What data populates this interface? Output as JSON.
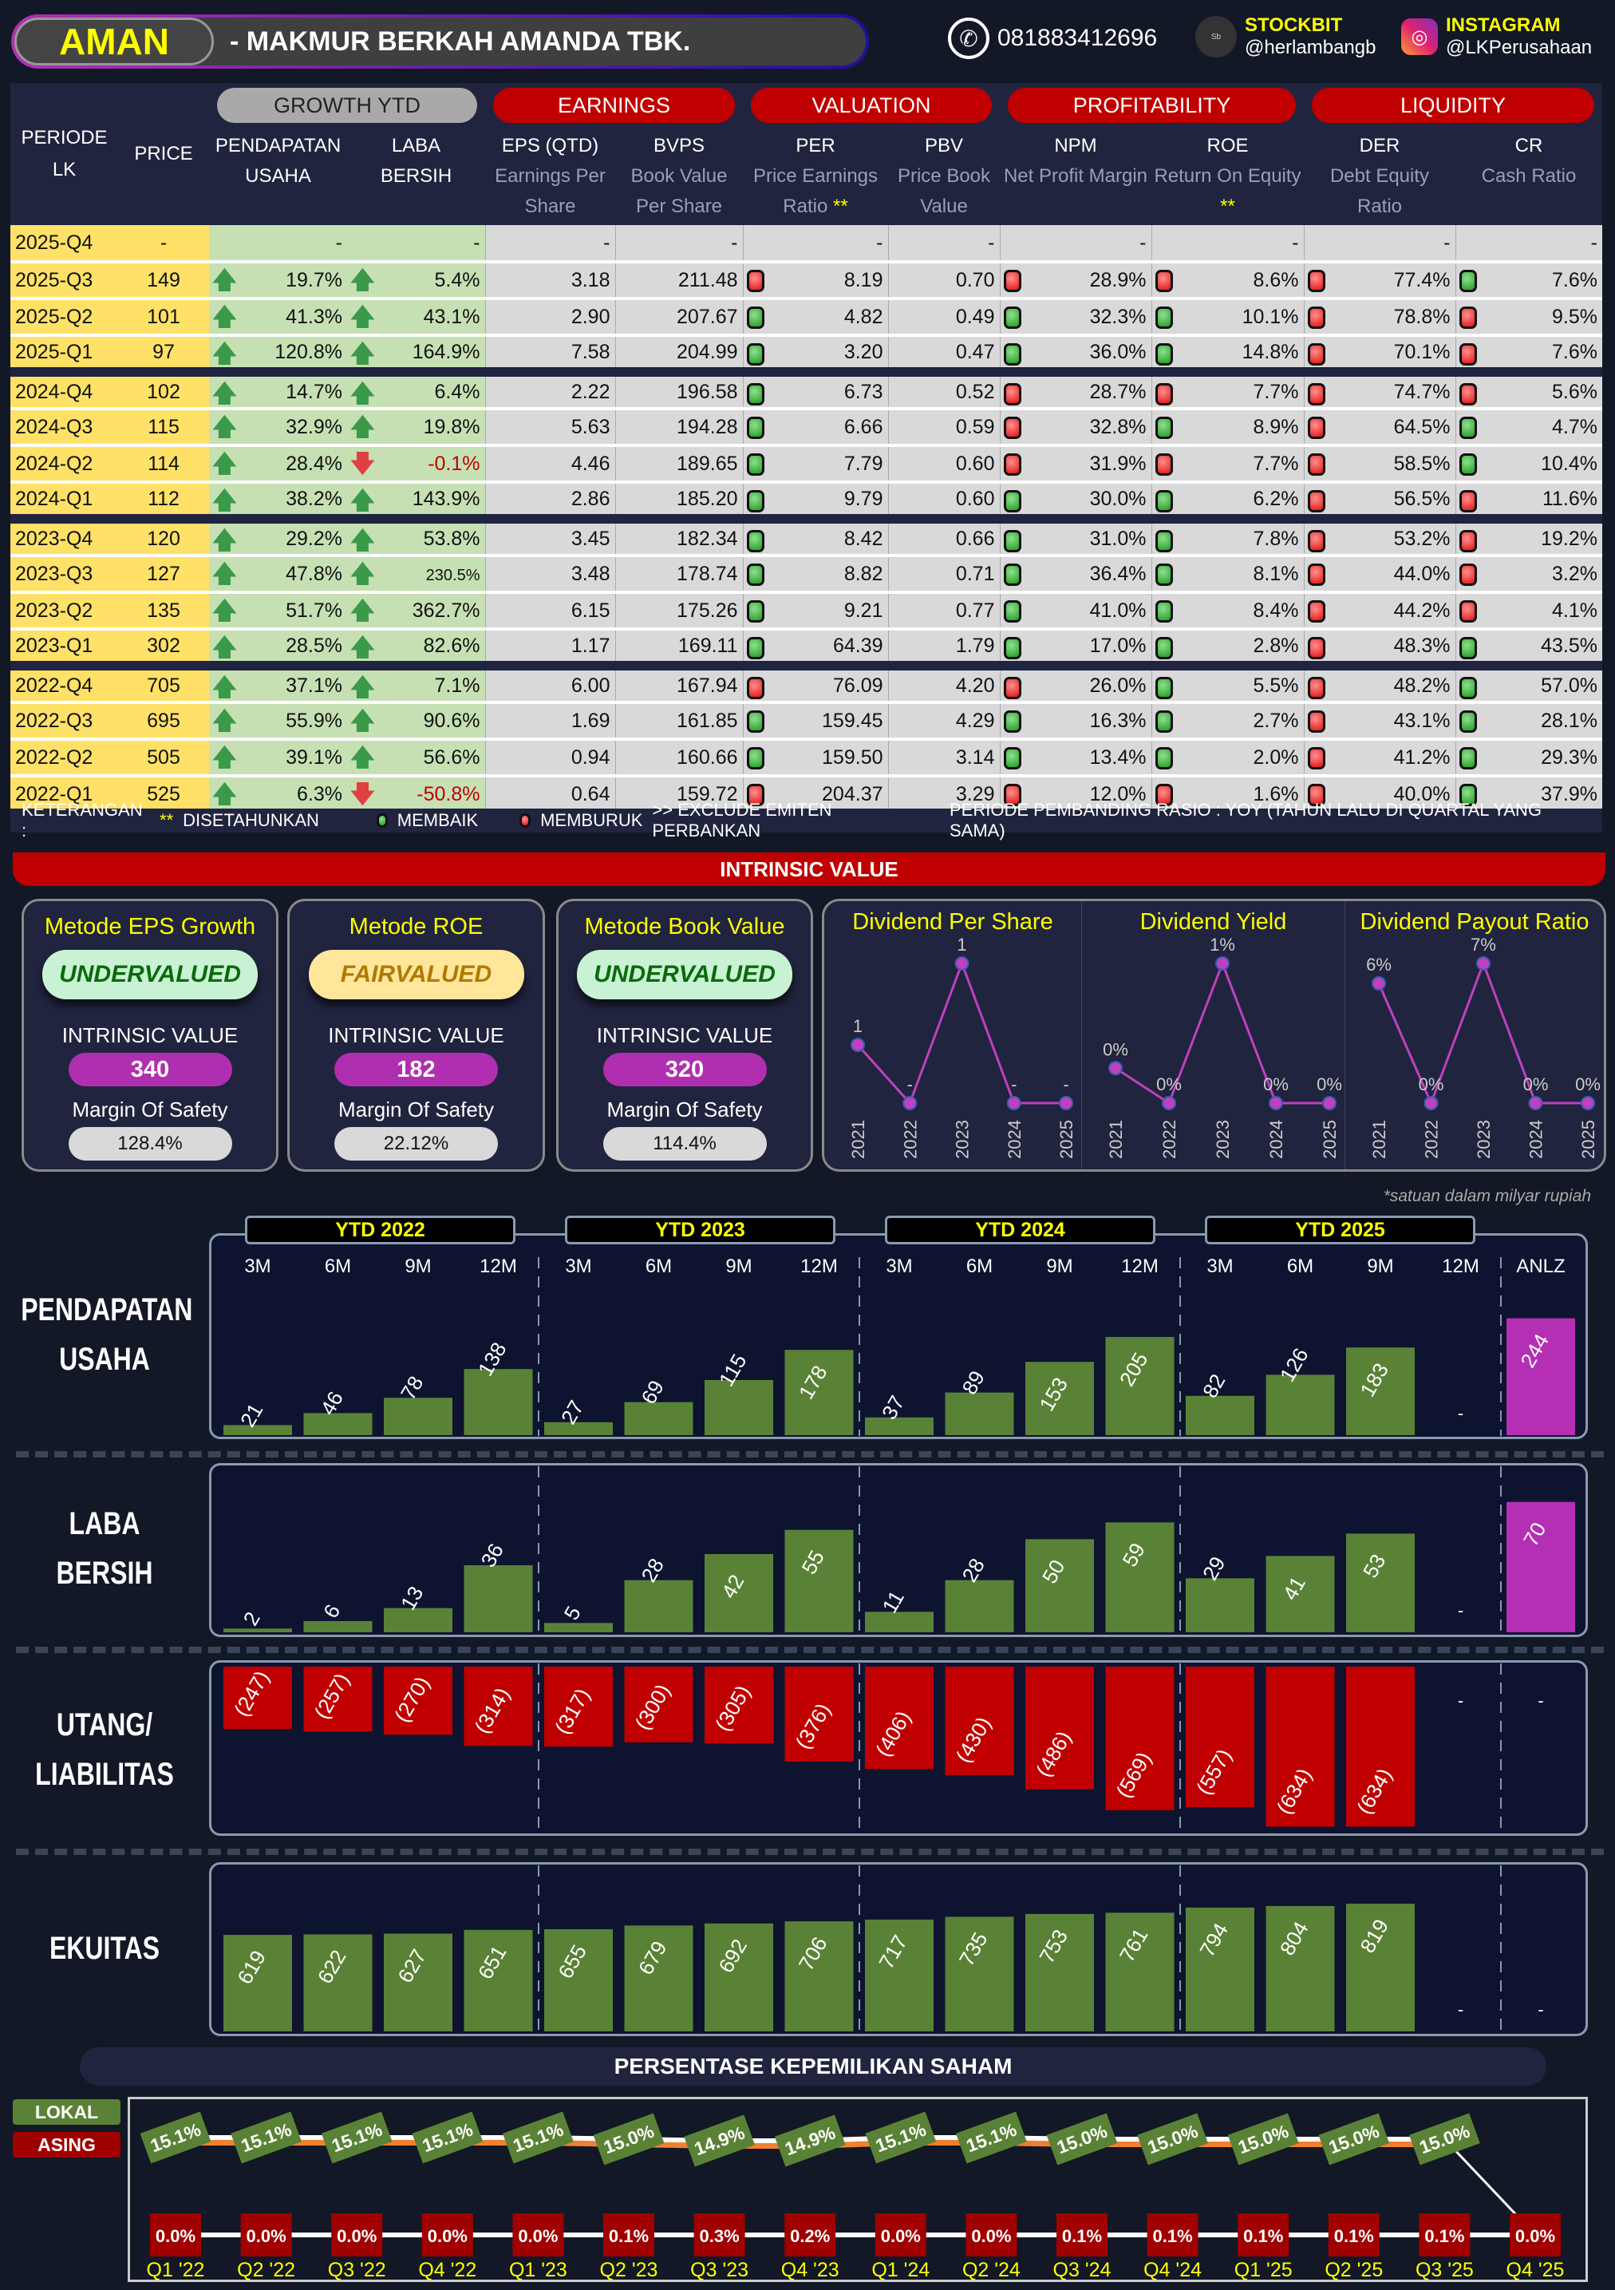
{
  "header": {
    "ticker": "AMAN",
    "company": "- MAKMUR BERKAH AMANDA TBK.",
    "phone": "081883412696",
    "stockbit_label": "STOCKBIT",
    "stockbit_handle": "@herlambangb",
    "instagram_label": "INSTAGRAM",
    "instagram_handle": "@LKPerusahaan",
    "stockbit_logo_text": "Stockbit"
  },
  "table": {
    "groups": {
      "growth": "GROWTH YTD",
      "earnings": "EARNINGS",
      "valuation": "VALUATION",
      "profitability": "PROFITABILITY",
      "liquidity": "LIQUIDITY"
    },
    "headers": {
      "periode": "PERIODE",
      "lk": "LK",
      "price": "PRICE",
      "rev1": "PENDAPATAN",
      "rev2": "USAHA",
      "lb1": "LABA",
      "lb2": "BERSIH",
      "eps": "EPS (QTD)",
      "eps_sub": "Earnings Per Share",
      "bvps": "BVPS",
      "bvps_sub": "Book Value Per Share",
      "per": "PER",
      "per_sub": "Price Earnings Ratio",
      "per_mark": "**",
      "pbv": "PBV",
      "pbv_sub": "Price Book Value",
      "npm": "NPM",
      "npm_sub": "Net Profit Margin",
      "roe": "ROE",
      "roe_sub": "Return On Equity",
      "roe_mark": "**",
      "der": "DER",
      "der_sub": "Debt Equity Ratio",
      "cr": "CR",
      "cr_sub": "Cash Ratio"
    },
    "rows": [
      {
        "p": "2025-Q4",
        "price": "-",
        "rev": "-",
        "lb": "-",
        "eps": "-",
        "bvps": "-",
        "per": "-",
        "pbv": "-",
        "npm": "-",
        "roe": "-",
        "der": "-",
        "cr": "-"
      },
      {
        "p": "2025-Q3",
        "price": "149",
        "rev": "19.7%",
        "rd": "up",
        "lb": "5.4%",
        "ld": "up",
        "eps": "3.18",
        "bvps": "211.48",
        "per": "8.19",
        "pi": "r",
        "pbv": "0.70",
        "npm": "28.9%",
        "ni": "r",
        "roe": "8.6%",
        "ri": "r",
        "der": "77.4%",
        "di": "r",
        "cr": "7.6%",
        "ci": "g"
      },
      {
        "p": "2025-Q2",
        "price": "101",
        "rev": "41.3%",
        "rd": "up",
        "lb": "43.1%",
        "ld": "up",
        "eps": "2.90",
        "bvps": "207.67",
        "per": "4.82",
        "pi": "g",
        "pbv": "0.49",
        "npm": "32.3%",
        "ni": "g",
        "roe": "10.1%",
        "ri": "g",
        "der": "78.8%",
        "di": "r",
        "cr": "9.5%",
        "ci": "r"
      },
      {
        "p": "2025-Q1",
        "price": "97",
        "rev": "120.8%",
        "rd": "up",
        "lb": "164.9%",
        "ld": "up",
        "eps": "7.58",
        "bvps": "204.99",
        "per": "3.20",
        "pi": "g",
        "pbv": "0.47",
        "npm": "36.0%",
        "ni": "g",
        "roe": "14.8%",
        "ri": "g",
        "der": "70.1%",
        "di": "r",
        "cr": "7.6%",
        "ci": "r"
      },
      {
        "p": "2024-Q4",
        "price": "102",
        "rev": "14.7%",
        "rd": "up",
        "lb": "6.4%",
        "ld": "up",
        "eps": "2.22",
        "bvps": "196.58",
        "per": "6.73",
        "pi": "g",
        "pbv": "0.52",
        "npm": "28.7%",
        "ni": "r",
        "roe": "7.7%",
        "ri": "r",
        "der": "74.7%",
        "di": "r",
        "cr": "5.6%",
        "ci": "r"
      },
      {
        "p": "2024-Q3",
        "price": "115",
        "rev": "32.9%",
        "rd": "up",
        "lb": "19.8%",
        "ld": "up",
        "eps": "5.63",
        "bvps": "194.28",
        "per": "6.66",
        "pi": "g",
        "pbv": "0.59",
        "npm": "32.8%",
        "ni": "r",
        "roe": "8.9%",
        "ri": "g",
        "der": "64.5%",
        "di": "r",
        "cr": "4.7%",
        "ci": "g"
      },
      {
        "p": "2024-Q2",
        "price": "114",
        "rev": "28.4%",
        "rd": "up",
        "lb": "-0.1%",
        "ld": "down",
        "eps": "4.46",
        "bvps": "189.65",
        "per": "7.79",
        "pi": "g",
        "pbv": "0.60",
        "npm": "31.9%",
        "ni": "r",
        "roe": "7.7%",
        "ri": "r",
        "der": "58.5%",
        "di": "r",
        "cr": "10.4%",
        "ci": "g"
      },
      {
        "p": "2024-Q1",
        "price": "112",
        "rev": "38.2%",
        "rd": "up",
        "lb": "143.9%",
        "ld": "up",
        "eps": "2.86",
        "bvps": "185.20",
        "per": "9.79",
        "pi": "g",
        "pbv": "0.60",
        "npm": "30.0%",
        "ni": "g",
        "roe": "6.2%",
        "ri": "g",
        "der": "56.5%",
        "di": "r",
        "cr": "11.6%",
        "ci": "r"
      },
      {
        "p": "2023-Q4",
        "price": "120",
        "rev": "29.2%",
        "rd": "up",
        "lb": "53.8%",
        "ld": "up",
        "eps": "3.45",
        "bvps": "182.34",
        "per": "8.42",
        "pi": "g",
        "pbv": "0.66",
        "npm": "31.0%",
        "ni": "g",
        "roe": "7.8%",
        "ri": "g",
        "der": "53.2%",
        "di": "r",
        "cr": "19.2%",
        "ci": "r"
      },
      {
        "p": "2023-Q3",
        "price": "127",
        "rev": "47.8%",
        "rd": "up",
        "lb": "230.5%",
        "ld": "up",
        "eps": "3.48",
        "bvps": "178.74",
        "per": "8.82",
        "pi": "g",
        "pbv": "0.71",
        "npm": "36.4%",
        "ni": "g",
        "roe": "8.1%",
        "ri": "g",
        "der": "44.0%",
        "di": "r",
        "cr": "3.2%",
        "ci": "r"
      },
      {
        "p": "2023-Q2",
        "price": "135",
        "rev": "51.7%",
        "rd": "up",
        "lb": "362.7%",
        "ld": "up",
        "eps": "6.15",
        "bvps": "175.26",
        "per": "9.21",
        "pi": "g",
        "pbv": "0.77",
        "npm": "41.0%",
        "ni": "g",
        "roe": "8.4%",
        "ri": "g",
        "der": "44.2%",
        "di": "r",
        "cr": "4.1%",
        "ci": "r"
      },
      {
        "p": "2023-Q1",
        "price": "302",
        "rev": "28.5%",
        "rd": "up",
        "lb": "82.6%",
        "ld": "up",
        "eps": "1.17",
        "bvps": "169.11",
        "per": "64.39",
        "pi": "g",
        "pbv": "1.79",
        "npm": "17.0%",
        "ni": "g",
        "roe": "2.8%",
        "ri": "g",
        "der": "48.3%",
        "di": "r",
        "cr": "43.5%",
        "ci": "g"
      },
      {
        "p": "2022-Q4",
        "price": "705",
        "rev": "37.1%",
        "rd": "up",
        "lb": "7.1%",
        "ld": "up",
        "eps": "6.00",
        "bvps": "167.94",
        "per": "76.09",
        "pi": "r",
        "pbv": "4.20",
        "npm": "26.0%",
        "ni": "r",
        "roe": "5.5%",
        "ri": "g",
        "der": "48.2%",
        "di": "r",
        "cr": "57.0%",
        "ci": "g"
      },
      {
        "p": "2022-Q3",
        "price": "695",
        "rev": "55.9%",
        "rd": "up",
        "lb": "90.6%",
        "ld": "up",
        "eps": "1.69",
        "bvps": "161.85",
        "per": "159.45",
        "pi": "g",
        "pbv": "4.29",
        "npm": "16.3%",
        "ni": "g",
        "roe": "2.7%",
        "ri": "g",
        "der": "43.1%",
        "di": "r",
        "cr": "28.1%",
        "ci": "g"
      },
      {
        "p": "2022-Q2",
        "price": "505",
        "rev": "39.1%",
        "rd": "up",
        "lb": "56.6%",
        "ld": "up",
        "eps": "0.94",
        "bvps": "160.66",
        "per": "159.50",
        "pi": "g",
        "pbv": "3.14",
        "npm": "13.4%",
        "ni": "g",
        "roe": "2.0%",
        "ri": "g",
        "der": "41.2%",
        "di": "r",
        "cr": "29.3%",
        "ci": "g"
      },
      {
        "p": "2022-Q1",
        "price": "525",
        "rev": "6.3%",
        "rd": "up",
        "lb": "-50.8%",
        "ld": "down",
        "eps": "0.64",
        "bvps": "159.72",
        "per": "204.37",
        "pi": "r",
        "pbv": "3.29",
        "npm": "12.0%",
        "ni": "r",
        "roe": "1.6%",
        "ri": "r",
        "der": "40.0%",
        "di": "r",
        "cr": "37.9%",
        "ci": "g"
      }
    ]
  },
  "legend": {
    "prefix": "KETERANGAN :",
    "mark": "**",
    "annualized": "DISETAHUNKAN",
    "better": "MEMBAIK",
    "worse": "MEMBURUK",
    "exclude": ">> EXCLUDE EMITEN PERBANKAN",
    "compare": "PERIODE PEMBANDING RASIO : YOY (TAHUN LALU DI QUARTAL YANG SAMA)"
  },
  "intrinsic": {
    "title": "INTRINSIC VALUE",
    "iv_label": "INTRINSIC VALUE",
    "mos_label": "Margin Of Safety",
    "methods": [
      {
        "name": "Metode EPS Growth",
        "status": "UNDERVALUED",
        "value": "340",
        "mos": "128.4%"
      },
      {
        "name": "Metode ROE",
        "status": "FAIRVALUED",
        "value": "182",
        "mos": "22.12%"
      },
      {
        "name": "Metode Book Value",
        "status": "UNDERVALUED",
        "value": "320",
        "mos": "114.4%"
      }
    ]
  },
  "dividend": {
    "years": [
      "2021",
      "2022",
      "2023",
      "2024",
      "2025"
    ],
    "charts": [
      {
        "title": "Dividend Per Share",
        "values": [
          0.5,
          0,
          1.2,
          0,
          0
        ],
        "labels": [
          "1",
          "-",
          "1",
          "-",
          "-"
        ]
      },
      {
        "title": "Dividend Yield",
        "values": [
          0.3,
          0,
          1.2,
          0,
          0
        ],
        "labels": [
          "0%",
          "0%",
          "1%",
          "0%",
          "0%"
        ]
      },
      {
        "title": "Dividend Payout Ratio",
        "values": [
          6,
          0,
          7,
          0,
          0
        ],
        "labels": [
          "6%",
          "0%",
          "7%",
          "0%",
          "0%"
        ]
      }
    ]
  },
  "chart_data": [
    {
      "type": "bar",
      "title": "PENDAPATAN USAHA",
      "title2": "",
      "categories": [
        "3M",
        "6M",
        "9M",
        "12M",
        "3M",
        "6M",
        "9M",
        "12M",
        "3M",
        "6M",
        "9M",
        "12M",
        "3M",
        "6M",
        "9M",
        "12M",
        "ANLZ"
      ],
      "groups": [
        "YTD 2022",
        "YTD 2023",
        "YTD 2024",
        "YTD 2025"
      ],
      "values": [
        21,
        46,
        78,
        138,
        27,
        69,
        115,
        178,
        37,
        89,
        153,
        205,
        82,
        126,
        183,
        null,
        244
      ],
      "ylim": [
        0,
        400
      ],
      "unit_note": "*satuan dalam milyar rupiah"
    },
    {
      "type": "bar",
      "title": "LABA",
      "title2": "BERSIH",
      "values": [
        2,
        6,
        13,
        36,
        5,
        28,
        42,
        55,
        11,
        28,
        50,
        59,
        29,
        41,
        53,
        null,
        70
      ],
      "ylim": [
        0,
        90
      ]
    },
    {
      "type": "bar",
      "title": "UTANG/",
      "title2": "LIABILITAS",
      "values": [
        247,
        257,
        270,
        314,
        317,
        300,
        305,
        376,
        406,
        430,
        486,
        569,
        557,
        634,
        634,
        null,
        null
      ],
      "negative": true,
      "ylim": [
        0,
        680
      ]
    },
    {
      "type": "bar",
      "title": "EKUITAS",
      "title2": "",
      "values": [
        619,
        622,
        627,
        651,
        655,
        679,
        692,
        706,
        717,
        735,
        753,
        761,
        794,
        804,
        819,
        null,
        null
      ],
      "ylim": [
        0,
        1075
      ]
    },
    {
      "type": "line",
      "title": "PERSENTASE KEPEMILIKAN SAHAM",
      "categories": [
        "Q1 '22",
        "Q2 '22",
        "Q3 '22",
        "Q4 '22",
        "Q1 '23",
        "Q2 '23",
        "Q3 '23",
        "Q4 '23",
        "Q1 '24",
        "Q2 '24",
        "Q3 '24",
        "Q4 '24",
        "Q1 '25",
        "Q2 '25",
        "Q3 '25",
        "Q4 '25"
      ],
      "series": [
        {
          "name": "LOKAL",
          "values": [
            15.1,
            15.1,
            15.1,
            15.1,
            15.1,
            15.0,
            14.9,
            14.9,
            15.1,
            15.1,
            15.0,
            15.0,
            15.0,
            15.0,
            15.0,
            null
          ]
        },
        {
          "name": "ASING",
          "values": [
            0.0,
            0.0,
            0.0,
            0.0,
            0.0,
            0.1,
            0.3,
            0.2,
            0.0,
            0.0,
            0.1,
            0.1,
            0.1,
            0.1,
            0.1,
            0.0
          ]
        }
      ]
    }
  ],
  "colors": {
    "green": "#5a8236",
    "red": "#c00000",
    "magenta": "#b52fb5",
    "yellow": "#ffff00"
  }
}
